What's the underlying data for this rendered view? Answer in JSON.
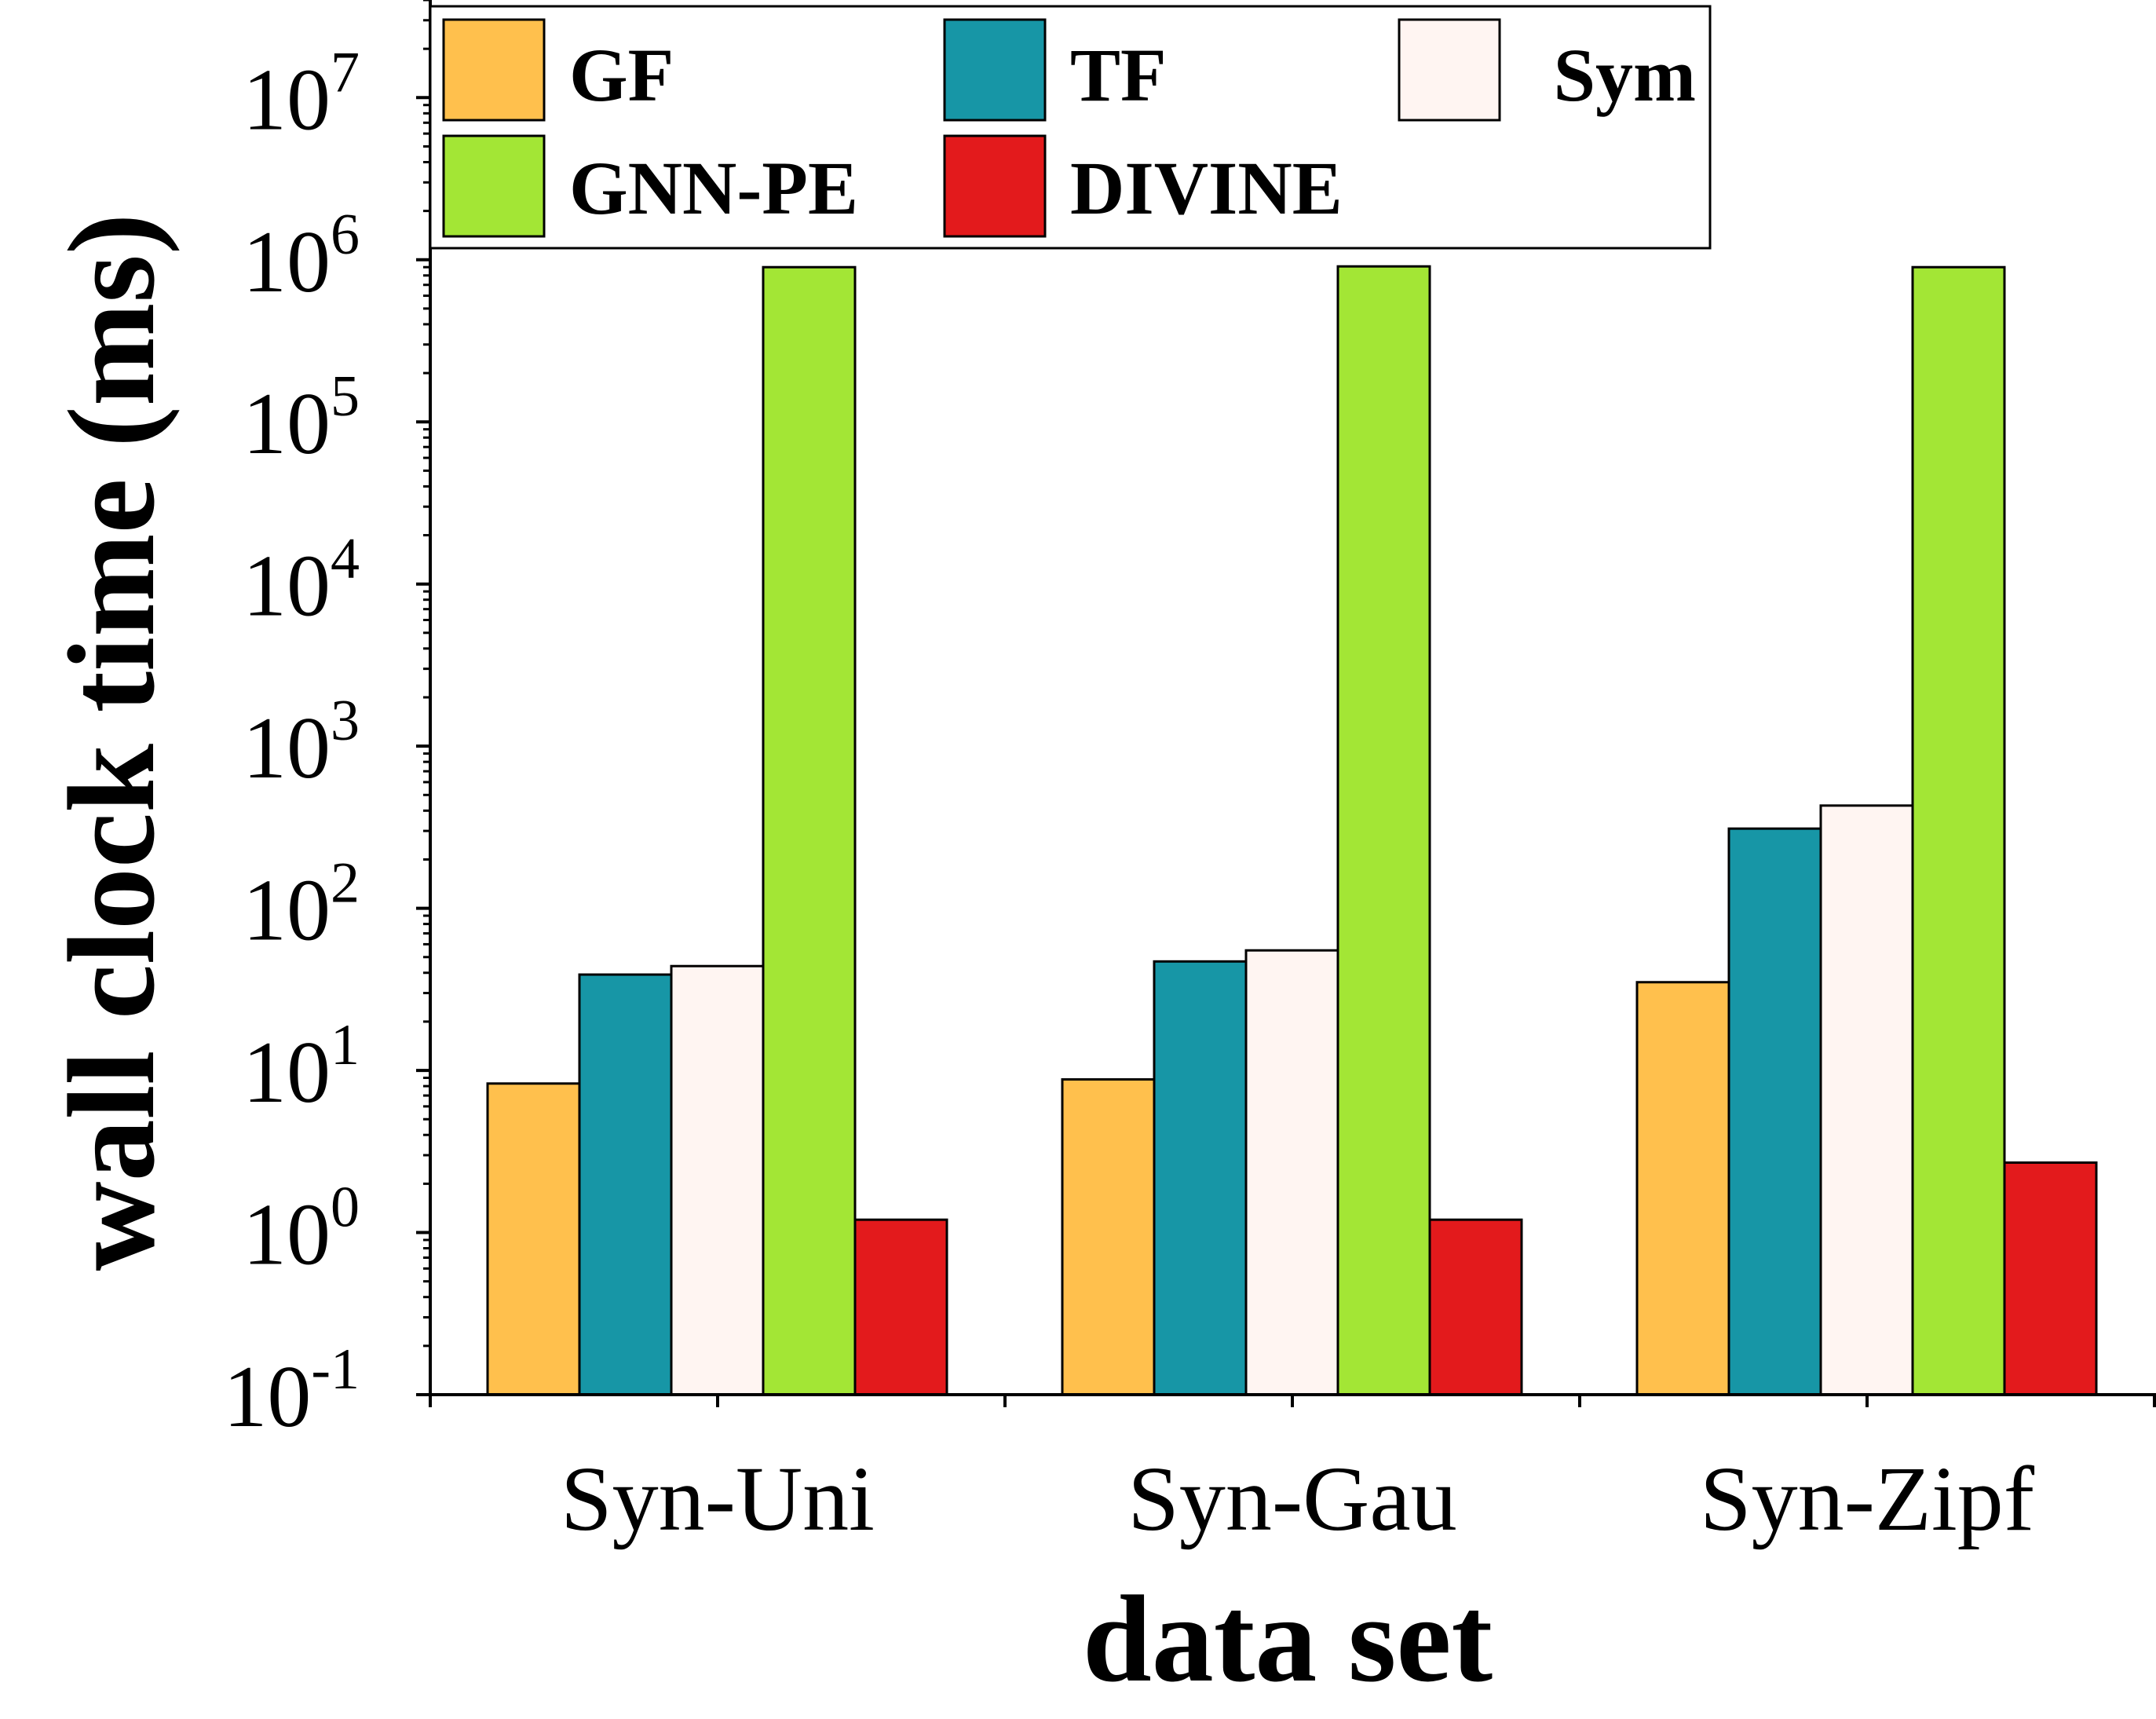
{
  "chart_data": {
    "type": "bar",
    "categories": [
      "Syn-Uni",
      "Syn-Gau",
      "Syn-Zipf"
    ],
    "series": [
      {
        "name": "GF",
        "color": "#FFC04D",
        "values": [
          8.3,
          8.8,
          35
        ]
      },
      {
        "name": "TF",
        "color": "#1796A6",
        "values": [
          39,
          47,
          310
        ]
      },
      {
        "name": "Sym",
        "color": "#FFF5F2",
        "values": [
          44,
          55,
          430
        ]
      },
      {
        "name": "GNN-PE",
        "color": "#A3E635",
        "values": [
          900000,
          910000,
          900000
        ]
      },
      {
        "name": "DIVINE",
        "color": "#E31A1C",
        "values": [
          1.2,
          1.2,
          2.7
        ]
      }
    ],
    "xlabel": "data set",
    "ylabel": "wall clock time (ms)",
    "yscale": "log",
    "ylim": [
      0.1,
      40000000
    ],
    "yticks": [
      {
        "base": "10",
        "exp": "-1"
      },
      {
        "base": "10",
        "exp": "0"
      },
      {
        "base": "10",
        "exp": "1"
      },
      {
        "base": "10",
        "exp": "2"
      },
      {
        "base": "10",
        "exp": "3"
      },
      {
        "base": "10",
        "exp": "4"
      },
      {
        "base": "10",
        "exp": "5"
      },
      {
        "base": "10",
        "exp": "6"
      },
      {
        "base": "10",
        "exp": "7"
      }
    ],
    "legend_position": "top-left",
    "grid": false
  }
}
